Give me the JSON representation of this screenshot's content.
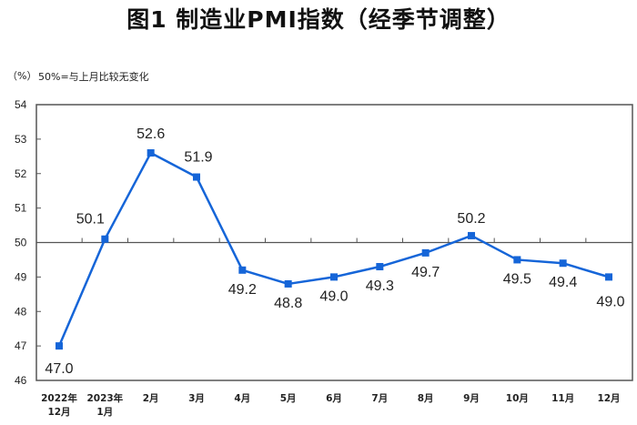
{
  "header": {
    "title": "图1 制造业PMI指数（经季节调整）",
    "unit_label": "（%）",
    "note": "50%=与上月比较无变化"
  },
  "chart_data": {
    "type": "line",
    "title": "图1 制造业PMI指数（经季节调整）",
    "xlabel": "",
    "ylabel": "（%）",
    "annotation": "50%=与上月比较无变化",
    "categories": [
      "2022年12月",
      "2023年1月",
      "2月",
      "3月",
      "4月",
      "5月",
      "6月",
      "7月",
      "8月",
      "9月",
      "10月",
      "11月",
      "12月"
    ],
    "category_lines": [
      [
        "2022年",
        "12月"
      ],
      [
        "2023年",
        "1月"
      ],
      [
        "2月"
      ],
      [
        "3月"
      ],
      [
        "4月"
      ],
      [
        "5月"
      ],
      [
        "6月"
      ],
      [
        "7月"
      ],
      [
        "8月"
      ],
      [
        "9月"
      ],
      [
        "10月"
      ],
      [
        "11月"
      ],
      [
        "12月"
      ]
    ],
    "series": [
      {
        "name": "制造业PMI",
        "values": [
          47.0,
          50.1,
          52.6,
          51.9,
          49.2,
          48.8,
          49.0,
          49.3,
          49.7,
          50.2,
          49.5,
          49.4,
          49.0
        ],
        "labels": [
          "47.0",
          "50.1",
          "52.6",
          "51.9",
          "49.2",
          "48.8",
          "49.0",
          "49.3",
          "49.7",
          "50.2",
          "49.5",
          "49.4",
          "49.0"
        ],
        "label_pos": [
          "below",
          "above",
          "above",
          "above",
          "below",
          "below",
          "below",
          "below",
          "below",
          "above",
          "below",
          "below",
          "below"
        ],
        "color": "#1565d8"
      }
    ],
    "ylim": [
      46,
      54
    ],
    "yticks": [
      46,
      47,
      48,
      49,
      50,
      51,
      52,
      53,
      54
    ],
    "reference_line": 50,
    "grid": false,
    "legend": "none"
  }
}
